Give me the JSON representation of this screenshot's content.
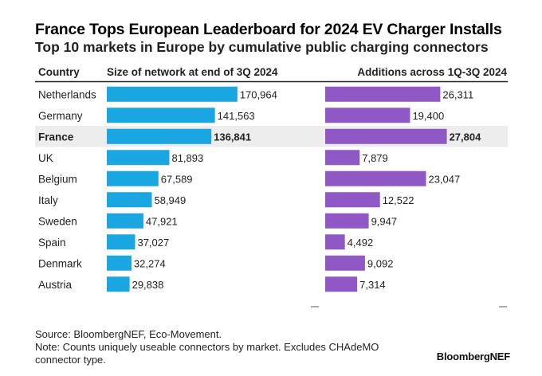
{
  "chart_data": {
    "type": "bar",
    "title": "France Tops European Leaderboard for 2024 EV Charger Installs",
    "subtitle": "Top 10 markets in Europe by cumulative public charging connectors",
    "category_header": "Country",
    "categories": [
      "Netherlands",
      "Germany",
      "France",
      "UK",
      "Belgium",
      "Italy",
      "Sweden",
      "Spain",
      "Denmark",
      "Austria"
    ],
    "highlight": "France",
    "series": [
      {
        "name": "Size of network at end of 3Q 2024",
        "color": "#1aa6e0",
        "values": [
          170964,
          141563,
          136841,
          81893,
          67589,
          58949,
          47921,
          37027,
          32274,
          29838
        ],
        "labels": [
          "170,964",
          "141,563",
          "136,841",
          "81,893",
          "67,589",
          "58,949",
          "47,921",
          "37,027",
          "32,274",
          "29,838"
        ]
      },
      {
        "name": "Additions across 1Q-3Q 2024",
        "color": "#8f58c4",
        "values": [
          26311,
          19400,
          27804,
          7879,
          23047,
          12522,
          9947,
          4492,
          9092,
          7314
        ],
        "labels": [
          "26,311",
          "19,400",
          "27,804",
          "7,879",
          "23,047",
          "12,522",
          "9,947",
          "4,492",
          "9,092",
          "7,314"
        ]
      }
    ],
    "highlight_color": "#ededed",
    "header_rule_color": "#222222"
  },
  "footer": {
    "source": "Source: BloombergNEF, Eco-Movement.",
    "note_line1": "Note: Counts uniquely useable connectors by market. Excludes CHAdeMO",
    "note_line2": "connector type."
  },
  "logo": "BloombergNEF"
}
